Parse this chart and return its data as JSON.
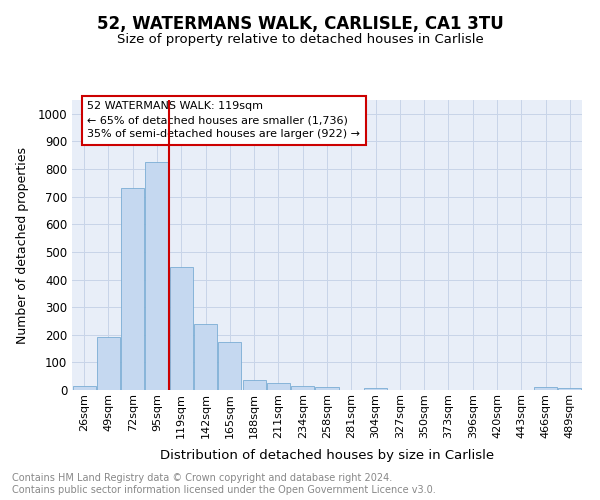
{
  "title": "52, WATERMANS WALK, CARLISLE, CA1 3TU",
  "subtitle": "Size of property relative to detached houses in Carlisle",
  "xlabel": "Distribution of detached houses by size in Carlisle",
  "ylabel": "Number of detached properties",
  "footnote": "Contains HM Land Registry data © Crown copyright and database right 2024.\nContains public sector information licensed under the Open Government Licence v3.0.",
  "bar_labels": [
    "26sqm",
    "49sqm",
    "72sqm",
    "95sqm",
    "119sqm",
    "142sqm",
    "165sqm",
    "188sqm",
    "211sqm",
    "234sqm",
    "258sqm",
    "281sqm",
    "304sqm",
    "327sqm",
    "350sqm",
    "373sqm",
    "396sqm",
    "420sqm",
    "443sqm",
    "466sqm",
    "489sqm"
  ],
  "bar_values": [
    15,
    193,
    730,
    825,
    445,
    238,
    175,
    35,
    25,
    15,
    10,
    0,
    8,
    0,
    0,
    0,
    0,
    0,
    0,
    10,
    8
  ],
  "bar_color": "#c5d8f0",
  "bar_edge_color": "#7aadd4",
  "vline_color": "#cc0000",
  "annotation_text": "52 WATERMANS WALK: 119sqm\n← 65% of detached houses are smaller (1,736)\n35% of semi-detached houses are larger (922) →",
  "annotation_box_color": "#ffffff",
  "annotation_box_edge": "#cc0000",
  "ylim": [
    0,
    1050
  ],
  "yticks": [
    0,
    100,
    200,
    300,
    400,
    500,
    600,
    700,
    800,
    900,
    1000
  ],
  "grid_color": "#c8d4e8",
  "bg_color": "#e8eef8",
  "title_fontsize": 12,
  "subtitle_fontsize": 9.5,
  "ylabel_fontsize": 9,
  "xlabel_fontsize": 9.5,
  "footnote_fontsize": 7,
  "footnote_color": "#888888"
}
